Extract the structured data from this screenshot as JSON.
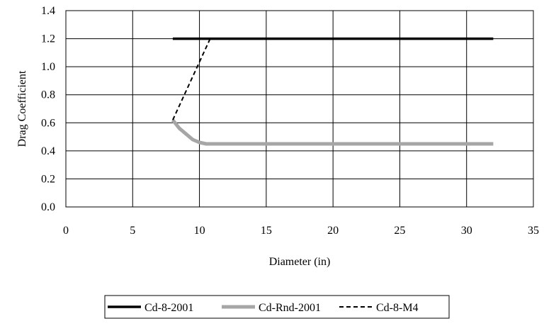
{
  "chart_data": {
    "type": "line",
    "title": "",
    "xlabel": "Diameter (in)",
    "ylabel": "Drag Coefficient",
    "xlim": [
      0,
      35
    ],
    "ylim": [
      0.0,
      1.4
    ],
    "x_ticks": [
      0,
      5,
      10,
      15,
      20,
      25,
      30,
      35
    ],
    "y_ticks": [
      0.0,
      0.2,
      0.4,
      0.6,
      0.8,
      1.0,
      1.2,
      1.4
    ],
    "x_tick_labels": [
      "0",
      "5",
      "10",
      "15",
      "20",
      "25",
      "30",
      "35"
    ],
    "y_tick_labels": [
      "0.0",
      "0.2",
      "0.4",
      "0.6",
      "0.8",
      "1.0",
      "1.2",
      "1.4"
    ],
    "grid": true,
    "legend_position": "bottom",
    "series": [
      {
        "name": "Cd-8-2001",
        "color": "#000000",
        "style": "solid-thick",
        "x": [
          8,
          32
        ],
        "y": [
          1.2,
          1.2
        ]
      },
      {
        "name": "Cd-Rnd-2001",
        "color": "#a6a6a6",
        "style": "solid-thicker",
        "x": [
          8,
          8.5,
          9,
          9.5,
          10,
          10.5,
          32
        ],
        "y": [
          0.62,
          0.56,
          0.52,
          0.48,
          0.46,
          0.45,
          0.45
        ]
      },
      {
        "name": "Cd-8-M4",
        "color": "#000000",
        "style": "dashed",
        "x": [
          8,
          10.8
        ],
        "y": [
          0.62,
          1.2
        ]
      }
    ]
  }
}
